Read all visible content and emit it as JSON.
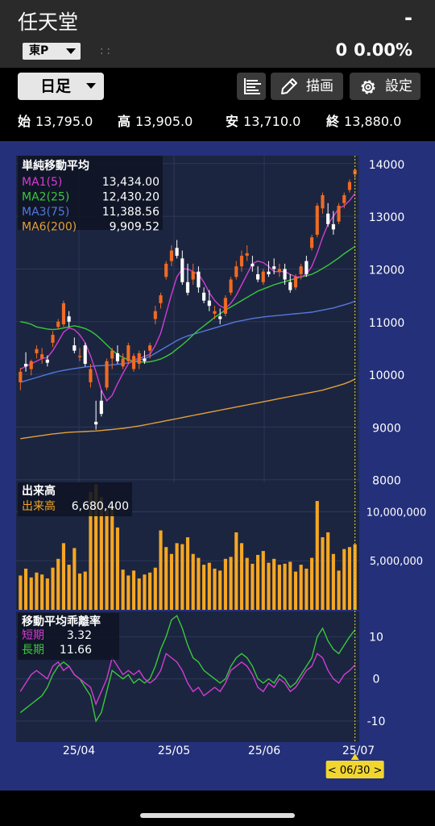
{
  "header": {
    "title": "任天堂",
    "price": "-",
    "exchange": "東P",
    "dots": ": :",
    "change": "0",
    "change_pct": "0.00%"
  },
  "toolbar": {
    "period": "日足",
    "draw_label": "描画",
    "settings_label": "設定"
  },
  "ohlc": {
    "open_label": "始",
    "open": "13,795.0",
    "high_label": "高",
    "high": "13,905.0",
    "low_label": "安",
    "low": "13,710.0",
    "close_label": "終",
    "close": "13,880.0"
  },
  "colors": {
    "up": "#ef6b24",
    "down": "#ffffff",
    "ma1": "#d23cd2",
    "ma2": "#3bc83b",
    "ma3": "#5578dc",
    "ma6": "#e4a03a",
    "volume": "#f5a623",
    "background": "#24307a",
    "panel": "#1b2540"
  },
  "chart_data": [
    {
      "type": "candlestick",
      "title": "単純移動平均",
      "legend": [
        {
          "name": "MA1(5)",
          "value": "13,434.00"
        },
        {
          "name": "MA2(25)",
          "value": "12,430.20"
        },
        {
          "name": "MA3(75)",
          "value": "11,388.56"
        },
        {
          "name": "MA6(200)",
          "value": "9,909.52"
        }
      ],
      "ylim": [
        7950,
        14150
      ],
      "y_ticks": [
        "14000",
        "13000",
        "12000",
        "11000",
        "10000",
        "9000",
        "8000"
      ],
      "candles": [
        [
          9850,
          10120,
          9700,
          10050
        ],
        [
          10200,
          10420,
          10050,
          10150
        ],
        [
          10100,
          10280,
          9980,
          10250
        ],
        [
          10400,
          10550,
          10300,
          10480
        ],
        [
          10300,
          10500,
          10200,
          10380
        ],
        [
          10280,
          10360,
          10150,
          10220
        ],
        [
          10600,
          10820,
          10520,
          10750
        ],
        [
          10900,
          11050,
          10850,
          11000
        ],
        [
          10950,
          11400,
          10900,
          11350
        ],
        [
          11100,
          11200,
          10900,
          11000
        ],
        [
          10550,
          10700,
          10400,
          10450
        ],
        [
          10350,
          10500,
          10250,
          10350
        ],
        [
          10550,
          10600,
          10150,
          10200
        ],
        [
          9850,
          10200,
          9750,
          10100
        ],
        [
          9100,
          9500,
          8950,
          9050
        ],
        [
          9500,
          9700,
          9200,
          9250
        ],
        [
          9750,
          10300,
          9700,
          10250
        ],
        [
          10300,
          10500,
          10100,
          10450
        ],
        [
          10400,
          10550,
          10200,
          10250
        ],
        [
          10150,
          10400,
          10100,
          10300
        ],
        [
          10250,
          10600,
          10200,
          10550
        ],
        [
          10100,
          10400,
          10050,
          10350
        ],
        [
          10200,
          10450,
          10100,
          10400
        ],
        [
          10300,
          10450,
          10200,
          10250
        ],
        [
          10450,
          10600,
          10300,
          10550
        ],
        [
          11050,
          11300,
          10950,
          11200
        ],
        [
          11350,
          11550,
          11250,
          11500
        ],
        [
          11850,
          12150,
          11800,
          12100
        ],
        [
          12150,
          12450,
          12050,
          12350
        ],
        [
          12400,
          12550,
          12200,
          12250
        ],
        [
          12200,
          12350,
          11700,
          11750
        ],
        [
          11750,
          12100,
          11500,
          11550
        ],
        [
          11800,
          12100,
          11700,
          11950
        ],
        [
          11950,
          12050,
          11550,
          11650
        ],
        [
          11550,
          11650,
          11350,
          11400
        ],
        [
          11400,
          11600,
          11200,
          11300
        ],
        [
          11150,
          11300,
          11050,
          11200
        ],
        [
          11100,
          11250,
          10950,
          11050
        ],
        [
          11150,
          11500,
          11100,
          11450
        ],
        [
          11550,
          11850,
          11500,
          11800
        ],
        [
          11850,
          12150,
          11800,
          12050
        ],
        [
          12050,
          12350,
          11950,
          12250
        ],
        [
          12250,
          12450,
          12150,
          12300
        ],
        [
          12100,
          12250,
          11950,
          12050
        ],
        [
          11900,
          12050,
          11750,
          11800
        ],
        [
          11750,
          12000,
          11700,
          11950
        ],
        [
          11950,
          12150,
          11850,
          11900
        ],
        [
          12050,
          12200,
          11900,
          12000
        ],
        [
          11950,
          12100,
          11850,
          12000
        ],
        [
          12000,
          12100,
          11700,
          11800
        ],
        [
          11750,
          11900,
          11550,
          11600
        ],
        [
          11650,
          11900,
          11600,
          11850
        ],
        [
          11900,
          12100,
          11800,
          12050
        ],
        [
          12150,
          12250,
          11850,
          11900
        ],
        [
          12400,
          12650,
          12350,
          12600
        ],
        [
          12650,
          13250,
          12600,
          13200
        ],
        [
          13150,
          13450,
          13050,
          13400
        ],
        [
          13050,
          13250,
          12800,
          12850
        ],
        [
          12850,
          13100,
          12650,
          12750
        ],
        [
          12900,
          13250,
          12850,
          13200
        ],
        [
          13250,
          13450,
          13150,
          13400
        ],
        [
          13500,
          13700,
          13450,
          13650
        ],
        [
          13795,
          13905,
          13710,
          13880
        ]
      ],
      "ma1": [
        10100,
        10150,
        10200,
        10250,
        10300,
        10320,
        10450,
        10620,
        10800,
        10880,
        10850,
        10750,
        10600,
        10350,
        10050,
        9700,
        9500,
        9600,
        9820,
        10020,
        10200,
        10280,
        10300,
        10340,
        10380,
        10550,
        10780,
        11150,
        11520,
        11850,
        12000,
        12000,
        11950,
        11900,
        11750,
        11550,
        11400,
        11300,
        11250,
        11350,
        11500,
        11700,
        11900,
        12100,
        12150,
        12120,
        12050,
        11950,
        11950,
        11950,
        11900,
        11850,
        11850,
        11900,
        12050,
        12300,
        12600,
        12850,
        13000,
        13150,
        13200,
        13300,
        13434
      ],
      "ma2": [
        11000,
        10980,
        10950,
        10900,
        10880,
        10860,
        10850,
        10860,
        10880,
        10900,
        10920,
        10900,
        10870,
        10820,
        10750,
        10660,
        10560,
        10460,
        10380,
        10320,
        10280,
        10250,
        10240,
        10230,
        10240,
        10260,
        10290,
        10340,
        10400,
        10480,
        10560,
        10650,
        10750,
        10840,
        10920,
        11000,
        11080,
        11150,
        11220,
        11280,
        11340,
        11400,
        11460,
        11520,
        11580,
        11620,
        11660,
        11700,
        11730,
        11760,
        11790,
        11820,
        11850,
        11870,
        11900,
        11950,
        12010,
        12070,
        12140,
        12210,
        12290,
        12360,
        12430
      ],
      "ma3": [
        9850,
        9880,
        9910,
        9940,
        9970,
        10000,
        10030,
        10055,
        10075,
        10095,
        10110,
        10125,
        10140,
        10150,
        10160,
        10165,
        10170,
        10180,
        10190,
        10200,
        10220,
        10240,
        10270,
        10300,
        10340,
        10400,
        10460,
        10520,
        10580,
        10640,
        10690,
        10730,
        10760,
        10790,
        10820,
        10850,
        10880,
        10910,
        10940,
        10970,
        11000,
        11020,
        11040,
        11060,
        11075,
        11090,
        11100,
        11110,
        11120,
        11130,
        11140,
        11150,
        11160,
        11170,
        11180,
        11200,
        11220,
        11240,
        11260,
        11290,
        11320,
        11350,
        11389
      ],
      "ma6": [
        8780,
        8795,
        8810,
        8825,
        8840,
        8855,
        8870,
        8880,
        8890,
        8900,
        8905,
        8910,
        8915,
        8920,
        8925,
        8935,
        8945,
        8955,
        8965,
        8975,
        8990,
        9005,
        9020,
        9040,
        9060,
        9080,
        9100,
        9120,
        9140,
        9160,
        9180,
        9200,
        9220,
        9240,
        9260,
        9280,
        9300,
        9320,
        9340,
        9360,
        9380,
        9400,
        9420,
        9440,
        9460,
        9480,
        9500,
        9520,
        9540,
        9560,
        9580,
        9600,
        9620,
        9640,
        9660,
        9680,
        9700,
        9730,
        9760,
        9790,
        9820,
        9860,
        9910
      ]
    },
    {
      "type": "bar",
      "title": "出来高",
      "legend": [
        {
          "name": "出来高",
          "value": "6,680,400"
        }
      ],
      "ylim": [
        0,
        13000000
      ],
      "y_ticks": [
        "10,000,000",
        "5,000,000"
      ],
      "values": [
        3500000,
        4200000,
        3300000,
        3800000,
        3600000,
        3200000,
        4300000,
        5200000,
        6800000,
        4600000,
        6300000,
        3700000,
        3900000,
        12000000,
        12800000,
        11500000,
        10300000,
        10600000,
        8400000,
        4100000,
        3500000,
        4000000,
        3200000,
        3600000,
        3800000,
        4300000,
        8100000,
        6400000,
        5700000,
        6800000,
        6700000,
        7400000,
        5700000,
        5300000,
        4600000,
        4800000,
        4200000,
        4000000,
        5200000,
        5400000,
        7900000,
        6800000,
        5300000,
        4700000,
        5600000,
        6000000,
        4800000,
        5200000,
        4600000,
        4700000,
        4900000,
        3900000,
        4600000,
        4200000,
        5300000,
        11100000,
        7400000,
        7900000,
        5700000,
        4000000,
        6200000,
        6400000,
        6680400
      ]
    },
    {
      "type": "line",
      "title": "移動平均乖離率",
      "legend": [
        {
          "name": "短期",
          "value": "3.32"
        },
        {
          "name": "長期",
          "value": "11.66"
        }
      ],
      "ylim": [
        -15,
        16
      ],
      "y_ticks": [
        "10",
        "0",
        "-10"
      ],
      "short": [
        -3,
        -1,
        1,
        2,
        1,
        0,
        3,
        4,
        2,
        3,
        1,
        0,
        -1,
        -2,
        -6,
        -3,
        0,
        5,
        3,
        1,
        2,
        1,
        2,
        0,
        -1,
        0,
        2,
        6,
        5,
        4,
        2,
        -1,
        -3,
        -2,
        -4,
        -3,
        -2,
        -3,
        -1,
        2,
        3,
        4,
        3,
        1,
        -2,
        -3,
        -1,
        -2,
        0,
        -1,
        -3,
        -2,
        0,
        2,
        3,
        6,
        5,
        2,
        0,
        -1,
        1,
        2,
        3.32
      ],
      "long": [
        -8,
        -7,
        -6,
        -5,
        -4,
        -2,
        1,
        3,
        4,
        3,
        1,
        0,
        -2,
        -4,
        -10,
        -8,
        -3,
        2,
        1,
        0,
        1,
        -1,
        0,
        -1,
        0,
        3,
        7,
        10,
        14,
        15,
        12,
        8,
        5,
        4,
        2,
        1,
        0,
        -1,
        0,
        3,
        5,
        6,
        5,
        3,
        0,
        -1,
        0,
        -1,
        1,
        0,
        -2,
        -1,
        1,
        3,
        5,
        10,
        12,
        9,
        7,
        6,
        8,
        10,
        11.66
      ]
    }
  ],
  "x_labels": [
    "25/04",
    "25/05",
    "25/06",
    "25/07"
  ],
  "cursor_label": "< 06/30 >"
}
